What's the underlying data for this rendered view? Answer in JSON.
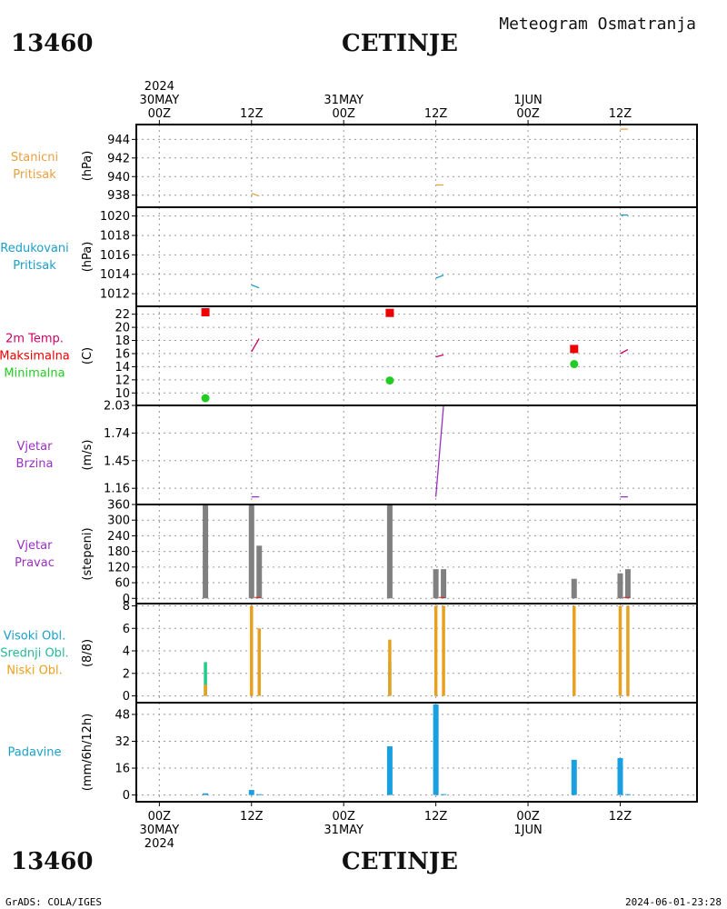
{
  "header": {
    "station_id": "13460",
    "station_name": "CETINJE",
    "chart_kind": "Meteogram Osmatranja"
  },
  "footer": {
    "station_id": "13460",
    "station_name": "CETINJE",
    "credit": "GrADS: COLA/IGES",
    "timestamp": "2024-06-01-23:28"
  },
  "time_axis": {
    "labels": [
      {
        "t": 0,
        "lines": [
          "2024",
          "30MAY",
          "00Z"
        ],
        "bottom": [
          "00Z",
          "30MAY",
          "2024"
        ]
      },
      {
        "t": 12,
        "lines": [
          "12Z"
        ],
        "bottom": [
          "12Z"
        ]
      },
      {
        "t": 24,
        "lines": [
          "31MAY",
          "00Z"
        ],
        "bottom": [
          "00Z",
          "31MAY"
        ]
      },
      {
        "t": 36,
        "lines": [
          "12Z"
        ],
        "bottom": [
          "12Z"
        ]
      },
      {
        "t": 48,
        "lines": [
          "1JUN",
          "00Z"
        ],
        "bottom": [
          "00Z",
          "1JUN"
        ]
      },
      {
        "t": 60,
        "lines": [
          "12Z"
        ],
        "bottom": [
          "12Z"
        ]
      }
    ],
    "range_hours": [
      -3,
      70
    ]
  },
  "chart_data": [
    {
      "id": "stanicni",
      "type": "line",
      "labels": [
        {
          "text": "Stanicni",
          "color": "#e8a040"
        },
        {
          "text": "Pritisak",
          "color": "#e8a040"
        }
      ],
      "ylabel": "(hPa)",
      "yticks": [
        938,
        940,
        942,
        944
      ],
      "ylim": [
        936.7,
        945.6
      ],
      "color": "#e8a040",
      "segments": [
        [
          [
            12,
            938.2
          ],
          [
            13,
            937.9
          ]
        ],
        [
          [
            36,
            939.1
          ],
          [
            37,
            939.1
          ]
        ],
        [
          [
            60,
            945.1
          ],
          [
            61,
            945.1
          ]
        ]
      ]
    },
    {
      "id": "redukovani",
      "type": "line",
      "labels": [
        {
          "text": "Redukovani",
          "color": "#1aa0c8"
        },
        {
          "text": "Pritisak",
          "color": "#1aa0c8"
        }
      ],
      "ylabel": "(hPa)",
      "yticks": [
        1012,
        1014,
        1016,
        1018,
        1020
      ],
      "ylim": [
        1010.7,
        1020.9
      ],
      "color": "#1aa0c8",
      "segments": [
        [
          [
            12,
            1012.9
          ],
          [
            13,
            1012.6
          ]
        ],
        [
          [
            36,
            1013.6
          ],
          [
            37,
            1013.9
          ]
        ],
        [
          [
            60,
            1020.1
          ],
          [
            61,
            1020.1
          ]
        ]
      ]
    },
    {
      "id": "temperatura",
      "type": "line+markers",
      "labels": [
        {
          "text": "2m Temp.",
          "color": "#cc0066"
        },
        {
          "text": "Maksimalna",
          "color": "#ee0000"
        },
        {
          "text": "Minimalna",
          "color": "#22cc22"
        }
      ],
      "ylabel": "(C)",
      "yticks": [
        10,
        12,
        14,
        16,
        18,
        20,
        22
      ],
      "ylim": [
        8.1,
        23.2
      ],
      "color": "#cc0066",
      "segments": [
        [
          [
            12,
            16.3
          ],
          [
            13,
            18.3
          ]
        ],
        [
          [
            36,
            15.5
          ],
          [
            37,
            15.8
          ]
        ],
        [
          [
            60,
            16.0
          ],
          [
            61,
            16.6
          ]
        ]
      ],
      "max": [
        {
          "t": 6,
          "v": 22.3
        },
        {
          "t": 30,
          "v": 22.2
        },
        {
          "t": 54,
          "v": 16.7
        }
      ],
      "min": [
        {
          "t": 6,
          "v": 9.2
        },
        {
          "t": 30,
          "v": 11.9
        },
        {
          "t": 54,
          "v": 14.4
        }
      ],
      "max_color": "#ee0000",
      "min_color": "#22cc22"
    },
    {
      "id": "brzina",
      "type": "line",
      "labels": [
        {
          "text": "Vjetar",
          "color": "#9a30c0"
        },
        {
          "text": "Brzina",
          "color": "#9a30c0"
        }
      ],
      "ylabel": "(m/s)",
      "yticks": [
        1.16,
        1.45,
        1.74,
        2.03
      ],
      "ylim": [
        0.99,
        2.03
      ],
      "color": "#9a30c0",
      "segments": [
        [
          [
            12,
            1.07
          ],
          [
            13,
            1.07
          ]
        ],
        [
          [
            36,
            1.07
          ],
          [
            37,
            2.03
          ]
        ],
        [
          [
            60,
            1.07
          ],
          [
            61,
            1.07
          ]
        ]
      ]
    },
    {
      "id": "pravac",
      "type": "bar",
      "labels": [
        {
          "text": "Vjetar",
          "color": "#9a30c0"
        },
        {
          "text": "Pravac",
          "color": "#9a30c0"
        }
      ],
      "ylabel": "(stepeni)",
      "yticks": [
        0,
        60,
        120,
        180,
        240,
        300,
        360
      ],
      "ylim": [
        -20,
        360
      ],
      "color": "#808080",
      "bars": [
        {
          "t": 6,
          "v": 360
        },
        {
          "t": 12,
          "v": 360
        },
        {
          "t": 13,
          "v": 202
        },
        {
          "t": 30,
          "v": 360
        },
        {
          "t": 36,
          "v": 112
        },
        {
          "t": 37,
          "v": 112
        },
        {
          "t": 54,
          "v": 75
        },
        {
          "t": 60,
          "v": 96
        },
        {
          "t": 61,
          "v": 112
        }
      ]
    },
    {
      "id": "oblaci",
      "type": "bar",
      "labels": [
        {
          "text": "Visoki Obl.",
          "color": "#1aa0c8"
        },
        {
          "text": "Srednji Obl.",
          "color": "#22bb99"
        },
        {
          "text": "Niski Obl.",
          "color": "#e8a020"
        }
      ],
      "ylabel": "(8/8)",
      "yticks": [
        0,
        2,
        4,
        6,
        8
      ],
      "ylim": [
        -0.6,
        8.2
      ],
      "series": [
        {
          "name": "Visoki Obl.",
          "color": "#1aa0c8",
          "bars": [
            {
              "t": 6,
              "v": 0
            },
            {
              "t": 12,
              "v": 0
            },
            {
              "t": 36,
              "v": 0
            },
            {
              "t": 60,
              "v": 0
            }
          ]
        },
        {
          "name": "Srednji Obl.",
          "color": "#22cc88",
          "bars": [
            {
              "t": 6,
              "v": 3
            },
            {
              "t": 30,
              "v": 3
            }
          ]
        },
        {
          "name": "Niski Obl.",
          "color": "#e8a020",
          "bars": [
            {
              "t": 6,
              "v": 1
            },
            {
              "t": 12,
              "v": 8
            },
            {
              "t": 13,
              "v": 6
            },
            {
              "t": 30,
              "v": 5
            },
            {
              "t": 36,
              "v": 8
            },
            {
              "t": 37,
              "v": 8
            },
            {
              "t": 54,
              "v": 8
            },
            {
              "t": 60,
              "v": 8
            },
            {
              "t": 61,
              "v": 8
            }
          ]
        }
      ]
    },
    {
      "id": "padavine",
      "type": "bar",
      "labels": [
        {
          "text": "Padavine",
          "color": "#1aa0c8"
        }
      ],
      "ylabel": "(mm/6h/12h)",
      "yticks": [
        0,
        16,
        32,
        48
      ],
      "ylim": [
        -4,
        55
      ],
      "color": "#1aa0e0",
      "bars": [
        {
          "t": 6,
          "v": 1
        },
        {
          "t": 12,
          "v": 3
        },
        {
          "t": 13,
          "v": 0.5
        },
        {
          "t": 30,
          "v": 29
        },
        {
          "t": 36,
          "v": 54
        },
        {
          "t": 37,
          "v": 0.5
        },
        {
          "t": 54,
          "v": 21
        },
        {
          "t": 60,
          "v": 22
        },
        {
          "t": 61,
          "v": 0.5
        }
      ]
    }
  ]
}
